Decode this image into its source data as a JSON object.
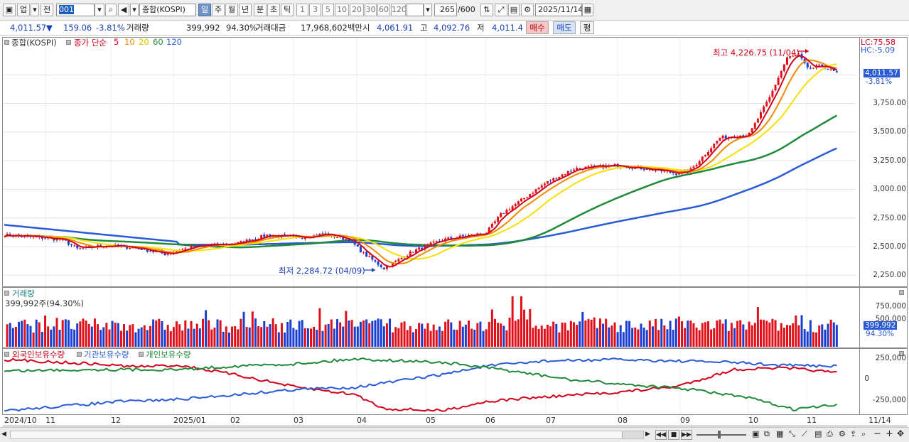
{
  "toolbar": {
    "market_type": "업",
    "prev_label": "전",
    "code_value": "001",
    "name_value": "종합(KOSPI)",
    "period_tabs": [
      "일",
      "주",
      "월",
      "년",
      "분",
      "초",
      "틱"
    ],
    "period_selected": "일",
    "interval_buttons": [
      "1",
      "3",
      "5",
      "10",
      "20",
      "30",
      "60",
      "120"
    ],
    "count_value": "265",
    "count_total": "/600",
    "date_value": "2025/11/14"
  },
  "quote": {
    "price": "4,011.57",
    "arrow": "▼",
    "change": "159.06",
    "change_pct": "-3.81%",
    "volume_label": "거래량",
    "volume": "399,992",
    "volume_ratio": "94.30%",
    "amount_label": "거래대금",
    "amount": "17,968,602백만",
    "open_label": "시",
    "open": "4,061.91",
    "high_label": "고",
    "high": "4,092.76",
    "low_label": "저",
    "low": "4,011.4",
    "buy_label": "매수",
    "sell_label": "매도",
    "eval_label": "평"
  },
  "price_panel": {
    "title": "종합(KOSPI)",
    "legend_prefix": "종가 단순",
    "ma_labels": [
      "5",
      "10",
      "20",
      "60",
      "120"
    ],
    "ma_colors": [
      "#d0021b",
      "#f08a00",
      "#f5e100",
      "#1f8a3a",
      "#2a5bd7"
    ],
    "lc": "LC:75.58",
    "hc": "HC:-5.09",
    "axis_ticks": [
      "3,750.00",
      "3,500.00",
      "3,250.00",
      "3,000.00",
      "2,750.00",
      "2,500.00",
      "2,250.00"
    ],
    "last_price_tag": "4,011.57",
    "last_pct_tag": "-3.81%",
    "high_annotation": "최고 4,226.75 (11/04)",
    "low_annotation": "최저 2,284.72 (04/09)"
  },
  "volume_panel": {
    "title": "거래량",
    "subtitle": "399,992주(94.30%)",
    "axis_ticks": [
      "750,000",
      "500,000"
    ],
    "value_tag": "399,992",
    "pct_tag": "94.30%"
  },
  "holding_panel": {
    "legend": [
      {
        "label": "외국인보유수량",
        "color": "#d0021b"
      },
      {
        "label": "기관보유수량",
        "color": "#2a5bd7"
      },
      {
        "label": "개인보유수량",
        "color": "#1f8a3a"
      }
    ],
    "axis_ticks": [
      "250,000",
      "0",
      "-250,000"
    ]
  },
  "x_axis": {
    "labels": [
      "2024/10",
      "11",
      "12",
      "2025/01",
      "02",
      "03",
      "04",
      "05",
      "06",
      "07",
      "08",
      "09",
      "10",
      "11"
    ],
    "right_label": "11/14"
  }
}
